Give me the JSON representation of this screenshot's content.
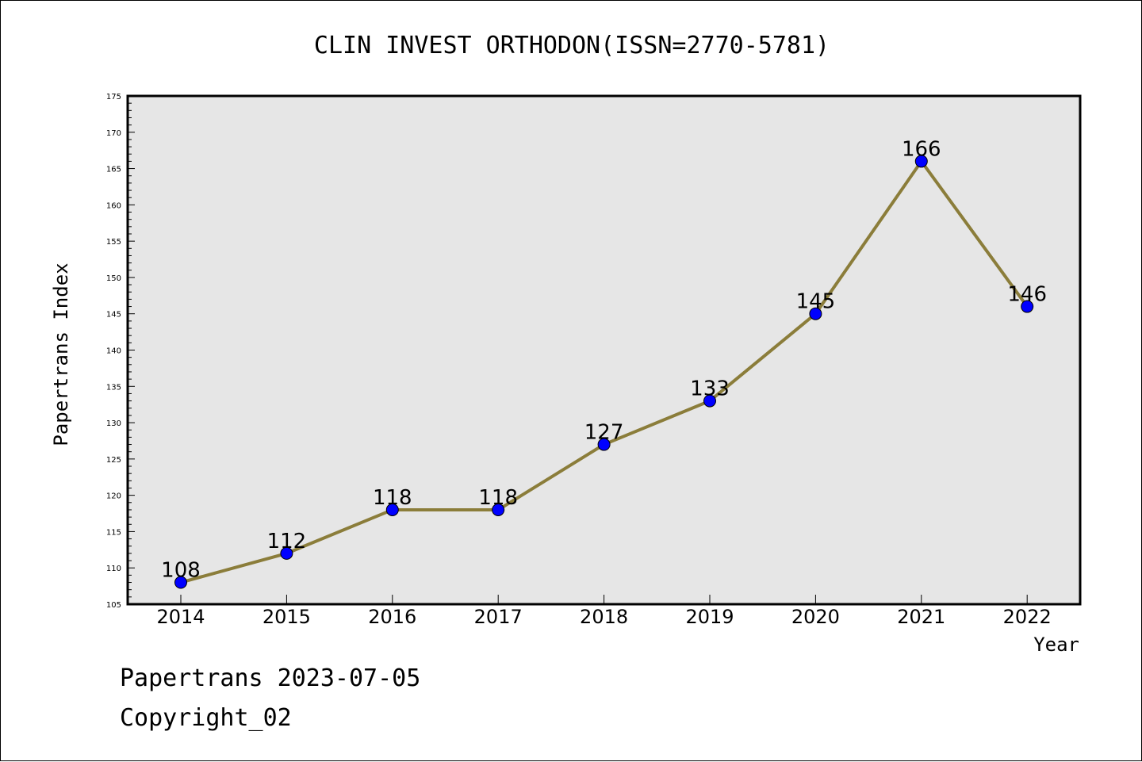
{
  "chart_data": {
    "type": "line",
    "title": "CLIN INVEST ORTHODON(ISSN=2770-5781)",
    "xlabel": "Year",
    "ylabel": "Papertrans Index",
    "categories": [
      "2014",
      "2015",
      "2016",
      "2017",
      "2018",
      "2019",
      "2020",
      "2021",
      "2022"
    ],
    "series": [
      {
        "values": [
          108,
          112,
          118,
          118,
          127,
          133,
          145,
          166,
          146
        ]
      }
    ],
    "ylim": [
      105,
      175
    ],
    "yticks": [
      105,
      110,
      115,
      120,
      125,
      130,
      135,
      140,
      145,
      150,
      155,
      160,
      165,
      170,
      175
    ],
    "grid": false,
    "data_labels": true,
    "colors": {
      "line": "#8b7d3a",
      "marker": "#0000ff",
      "plot_background": "#e6e6e6",
      "frame": "#000000"
    }
  },
  "footer": {
    "source": "Papertrans 2023-07-05",
    "copyright": "Copyright_02"
  }
}
